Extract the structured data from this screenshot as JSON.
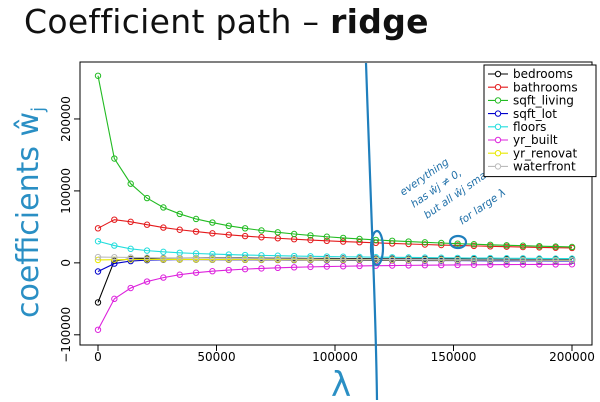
{
  "title": {
    "main": "Coefficient path – ",
    "emphasis": "ridge"
  },
  "chart_data": {
    "type": "line",
    "xlabel": "λ",
    "ylabel": "coefficients ŵ",
    "ylabel_sub": "j",
    "xlim": [
      0,
      200000
    ],
    "ylim": [
      -110000,
      275000
    ],
    "x_ticks": [
      0,
      50000,
      100000,
      150000,
      200000
    ],
    "x_tick_labels": [
      "0",
      "50000",
      "100000",
      "150000",
      "200000"
    ],
    "y_ticks": [
      -100000,
      0,
      100000,
      200000
    ],
    "y_tick_labels": [
      "−100000",
      "0",
      "100000",
      "200000"
    ],
    "grid": false,
    "legend_position": "top-right",
    "x": [
      0,
      6897,
      13793,
      20690,
      27586,
      34483,
      41379,
      48276,
      55172,
      62069,
      68966,
      75862,
      82759,
      89655,
      96552,
      103448,
      110345,
      117241,
      124138,
      131034,
      137931,
      144828,
      151724,
      158621,
      165517,
      172414,
      179310,
      186207,
      193103,
      200000
    ],
    "series": [
      {
        "name": "bedrooms",
        "color": "#000000",
        "values": [
          -55000,
          3000,
          5500,
          6200,
          6600,
          6700,
          6800,
          6800,
          6700,
          6600,
          6500,
          6400,
          6300,
          6200,
          6100,
          6000,
          5900,
          5800,
          5700,
          5600,
          5500,
          5400,
          5300,
          5200,
          5100,
          5000,
          4900,
          4800,
          4700,
          4600
        ]
      },
      {
        "name": "bathrooms",
        "color": "#e41a1c",
        "values": [
          48000,
          60000,
          57000,
          53000,
          49000,
          46000,
          43500,
          41000,
          39000,
          37200,
          35600,
          34200,
          32900,
          31700,
          30600,
          29600,
          28700,
          27800,
          27000,
          26200,
          25500,
          24800,
          24200,
          23600,
          23000,
          22500,
          22000,
          21500,
          21100,
          20700
        ]
      },
      {
        "name": "sqft_living",
        "color": "#22bb22",
        "values": [
          260000,
          145000,
          110000,
          90000,
          77000,
          68000,
          61000,
          56000,
          51500,
          48000,
          45000,
          42400,
          40100,
          38100,
          36300,
          34700,
          33200,
          31900,
          30700,
          29600,
          28500,
          27600,
          26700,
          25900,
          25100,
          24400,
          23800,
          23200,
          22600,
          22100
        ]
      },
      {
        "name": "sqft_lot",
        "color": "#0000cc",
        "values": [
          -12000,
          -1000,
          2500,
          3800,
          4300,
          4500,
          4500,
          4400,
          4300,
          4200,
          4100,
          4000,
          3900,
          3800,
          3700,
          3600,
          3500,
          3400,
          3300,
          3300,
          3200,
          3100,
          3100,
          3000,
          2900,
          2900,
          2800,
          2800,
          2700,
          2700
        ]
      },
      {
        "name": "floors",
        "color": "#22dddd",
        "values": [
          30000,
          24000,
          19500,
          17000,
          15300,
          14000,
          13000,
          12200,
          11500,
          10900,
          10400,
          9900,
          9500,
          9100,
          8800,
          8500,
          8200,
          7900,
          7700,
          7500,
          7300,
          7100,
          6900,
          6700,
          6600,
          6400,
          6300,
          6100,
          6000,
          5900
        ]
      },
      {
        "name": "yr_built",
        "color": "#dd22dd",
        "values": [
          -93000,
          -50000,
          -35000,
          -26000,
          -20500,
          -16500,
          -13700,
          -11600,
          -10000,
          -8700,
          -7700,
          -6900,
          -6200,
          -5600,
          -5100,
          -4700,
          -4300,
          -4000,
          -3700,
          -3500,
          -3300,
          -3100,
          -2900,
          -2700,
          -2600,
          -2400,
          -2300,
          -2200,
          -2100,
          -2000
        ]
      },
      {
        "name": "yr_renovat",
        "color": "#e8e800",
        "values": [
          4000,
          4400,
          4600,
          4700,
          4700,
          4700,
          4700,
          4600,
          4600,
          4500,
          4500,
          4400,
          4400,
          4300,
          4300,
          4200,
          4200,
          4100,
          4100,
          4000,
          4000,
          3900,
          3900,
          3800,
          3800,
          3800,
          3700,
          3700,
          3600,
          3600
        ]
      },
      {
        "name": "waterfront",
        "color": "#bbbbbb",
        "values": [
          8000,
          7800,
          7500,
          7200,
          7000,
          6800,
          6600,
          6400,
          6200,
          6000,
          5800,
          5700,
          5500,
          5400,
          5200,
          5100,
          5000,
          4900,
          4800,
          4700,
          4600,
          4500,
          4400,
          4300,
          4200,
          4100,
          4000,
          4000,
          3900,
          3800
        ]
      }
    ],
    "annotations": [
      {
        "text": "everything has ŵj ≠ 0, ŵj small but all for large λ",
        "lines": [
          "everything",
          "has ŵj ≠ 0,",
          "but all ŵj small",
          "for large λ"
        ]
      }
    ]
  }
}
